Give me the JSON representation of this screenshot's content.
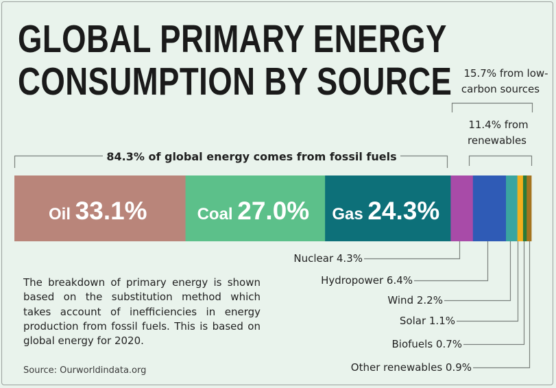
{
  "title_lines": [
    "GLOBAL PRIMARY ENERGY",
    "CONSUMPTION BY SOURCE"
  ],
  "low_carbon_note": [
    "15.7% from low-",
    "carbon sources"
  ],
  "renewables_note": [
    "11.4% from",
    "renewables"
  ],
  "fossil_note": "84.3% of global energy comes from fossil fuels",
  "description": "The breakdown of primary energy is shown based on the substitution method which takes account of inefficiencies in energy production from fossil fuels. This is based on global energy for 2020.",
  "source": "Source: Ourworldindata.org",
  "colors": {
    "oil": "#b9857a",
    "coal": "#5cc08a",
    "gas": "#0d7079",
    "nuclear": "#a84ba8",
    "hydropower": "#2f5bb6",
    "wind": "#3aa5a0",
    "solar": "#f2b01e",
    "biofuels": "#2a7a3a",
    "other": "#a47420",
    "bracket": "#7a807c",
    "label_text": "#ffffff"
  },
  "chart_data": {
    "type": "bar",
    "orientation": "horizontal-stacked",
    "categories": [
      "Oil",
      "Coal",
      "Gas",
      "Nuclear",
      "Hydropower",
      "Wind",
      "Solar",
      "Biofuels",
      "Other renewables"
    ],
    "values": [
      33.1,
      27.0,
      24.3,
      4.3,
      6.4,
      2.2,
      1.1,
      0.7,
      0.9
    ],
    "inside_labels": [
      {
        "name": "Oil",
        "value": "33.1%"
      },
      {
        "name": "Coal",
        "value": "27.0%"
      },
      {
        "name": "Gas",
        "value": "24.3%"
      }
    ],
    "callouts": [
      "Nuclear 4.3%",
      "Hydropower 6.4%",
      "Wind 2.2%",
      "Solar 1.1%",
      "Biofuels 0.7%",
      "Other renewables 0.9%"
    ],
    "title": "GLOBAL PRIMARY ENERGY CONSUMPTION BY SOURCE"
  }
}
